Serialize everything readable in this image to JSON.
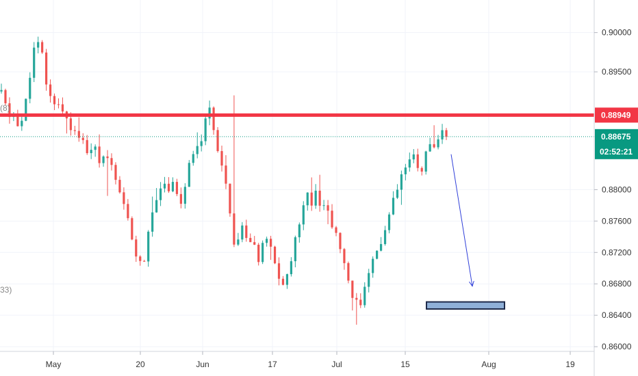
{
  "chart_data": {
    "type": "candlestick",
    "colors": {
      "up": "#26a69a",
      "down": "#ef5350",
      "resistance": "#f23645",
      "current": "#089981",
      "arrow": "#2f3fd9",
      "target_fill": "#8fb0d8",
      "target_stroke": "#1e2a4a"
    },
    "y_axis": {
      "range": [
        0.8594,
        0.9038
      ],
      "ticks": [
        "0.90000",
        "0.89500",
        "0.88000",
        "0.87600",
        "0.87200",
        "0.86800",
        "0.86400",
        "0.86000"
      ]
    },
    "x_axis": {
      "ticks": [
        "May",
        "20",
        "Jun",
        "17",
        "Jul",
        "15",
        "Aug",
        "19"
      ]
    },
    "resistance_level": {
      "value": 0.88949,
      "label": "0.88949"
    },
    "current_price": {
      "value": 0.88675,
      "label": "0.88675",
      "countdown": "02:52:21"
    },
    "target_zone": {
      "price_top": 0.8657,
      "price_bottom": 0.8648
    },
    "projection_arrow": {
      "from_price": 0.8845,
      "to_price": 0.8677
    },
    "left_labels": [
      "(8)",
      "33)"
    ],
    "price_path": [
      0.8925,
      0.8905,
      0.8888,
      0.8898,
      0.8878,
      0.8895,
      0.8932,
      0.8975,
      0.8985,
      0.8975,
      0.8935,
      0.8915,
      0.8912,
      0.8908,
      0.8898,
      0.8885,
      0.8875,
      0.8862,
      0.8868,
      0.8848,
      0.8845,
      0.8858,
      0.8835,
      0.8848,
      0.8842,
      0.8815,
      0.8798,
      0.8782,
      0.8765,
      0.8738,
      0.8718,
      0.8702,
      0.8715,
      0.8752,
      0.8782,
      0.8802,
      0.8808,
      0.8798,
      0.8818,
      0.8795,
      0.8782,
      0.8805,
      0.8835,
      0.8855,
      0.8848,
      0.8882,
      0.8905,
      0.8885,
      0.8855,
      0.8838,
      0.8808,
      0.8762,
      0.8728,
      0.8742,
      0.8758,
      0.8728,
      0.8738,
      0.8705,
      0.8725,
      0.8738,
      0.8722,
      0.8702,
      0.8685,
      0.8672,
      0.8705,
      0.8722,
      0.8752,
      0.8782,
      0.8795,
      0.8785,
      0.8802,
      0.8782,
      0.8778,
      0.8765,
      0.8752,
      0.8728,
      0.8712,
      0.8682,
      0.8668,
      0.8662,
      0.8648,
      0.8675,
      0.8695,
      0.8718,
      0.8725,
      0.8742,
      0.8758,
      0.8782,
      0.8798,
      0.8815,
      0.8828,
      0.8838,
      0.8842,
      0.8818,
      0.8835,
      0.8858,
      0.8845,
      0.8858,
      0.8875,
      0.8868
    ]
  }
}
